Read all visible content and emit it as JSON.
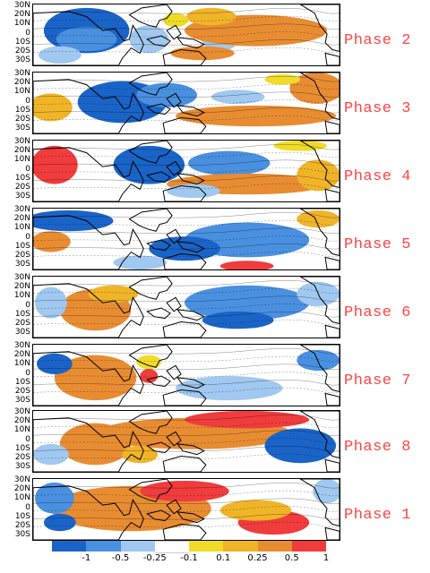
{
  "lat_labels": [
    "30N",
    "20N",
    "10N",
    "0",
    "10S",
    "20S",
    "30S"
  ],
  "palette": {
    "dark_blue": "#1a64c8",
    "mid_blue": "#4a90e0",
    "light_blue": "#a0c8f0",
    "yellow": "#f0dc28",
    "gold": "#f0b428",
    "orange": "#e88c32",
    "red": "#f03c3c",
    "land_outline": "#000000"
  },
  "panels": [
    {
      "phase": "Phase 2",
      "map": "phase-2"
    },
    {
      "phase": "Phase 3",
      "map": "phase-3"
    },
    {
      "phase": "Phase 4",
      "map": "phase-4"
    },
    {
      "phase": "Phase 5",
      "map": "phase-5"
    },
    {
      "phase": "Phase 6",
      "map": "phase-6"
    },
    {
      "phase": "Phase 7",
      "map": "phase-7"
    },
    {
      "phase": "Phase 8",
      "map": "phase-8"
    },
    {
      "phase": "Phase 1",
      "map": "phase-1"
    }
  ],
  "colorbar": {
    "colors": [
      "#1a64c8",
      "#4a90e0",
      "#a0c8f0",
      "#ffffff",
      "#f0dc28",
      "#f0b428",
      "#e88c32",
      "#f03c3c"
    ],
    "ticks": [
      "-1",
      "-0.5",
      "-0.25",
      "-0.1",
      "0.1",
      "0.25",
      "0.5",
      "1"
    ]
  }
}
